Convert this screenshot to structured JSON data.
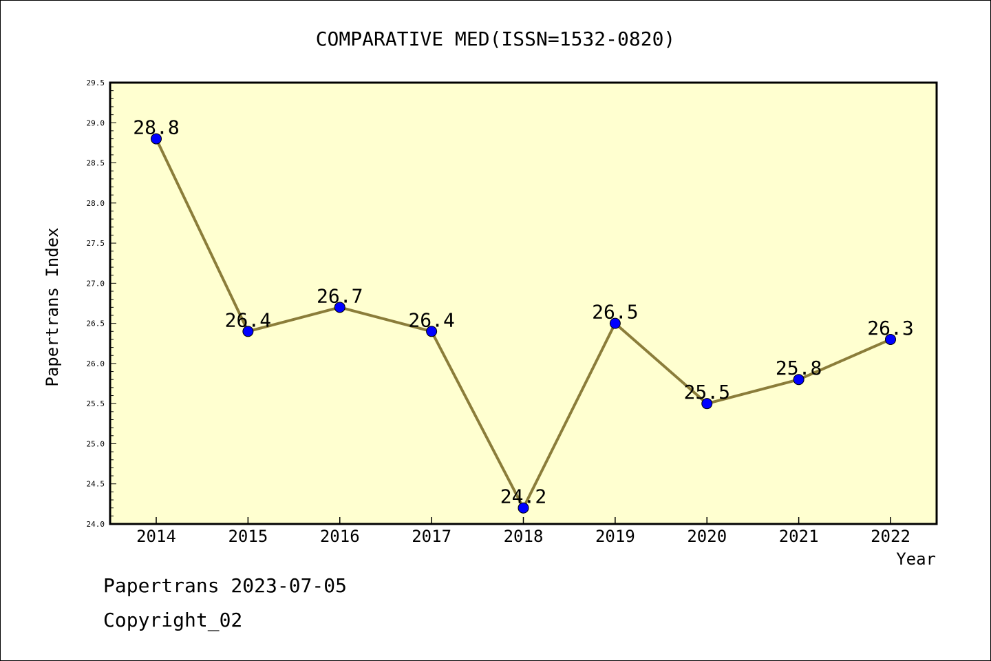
{
  "chart_data": {
    "type": "line",
    "title": "COMPARATIVE MED(ISSN=1532-0820)",
    "xlabel": "Year",
    "ylabel": "Papertrans Index",
    "categories": [
      "2014",
      "2015",
      "2016",
      "2017",
      "2018",
      "2019",
      "2020",
      "2021",
      "2022"
    ],
    "series": [
      {
        "values": [
          28.8,
          26.4,
          26.7,
          26.4,
          24.2,
          26.5,
          25.5,
          25.8,
          26.3
        ],
        "data_labels": [
          "28.8",
          "26.4",
          "26.7",
          "26.4",
          "24.2",
          "26.5",
          "25.5",
          "25.8",
          "26.3"
        ]
      }
    ],
    "ylim": [
      24.0,
      29.5
    ],
    "yticks": [
      "24.0",
      "24.5",
      "25.0",
      "25.5",
      "26.0",
      "26.5",
      "27.0",
      "27.5",
      "28.0",
      "28.5",
      "29.0",
      "29.5"
    ],
    "grid": false,
    "colors": {
      "plot_background": "#ffffd0",
      "line": "#8b7d3a",
      "marker": "#0000ff"
    }
  },
  "footer": {
    "line1": "Papertrans 2023-07-05",
    "line2": "Copyright_02"
  }
}
